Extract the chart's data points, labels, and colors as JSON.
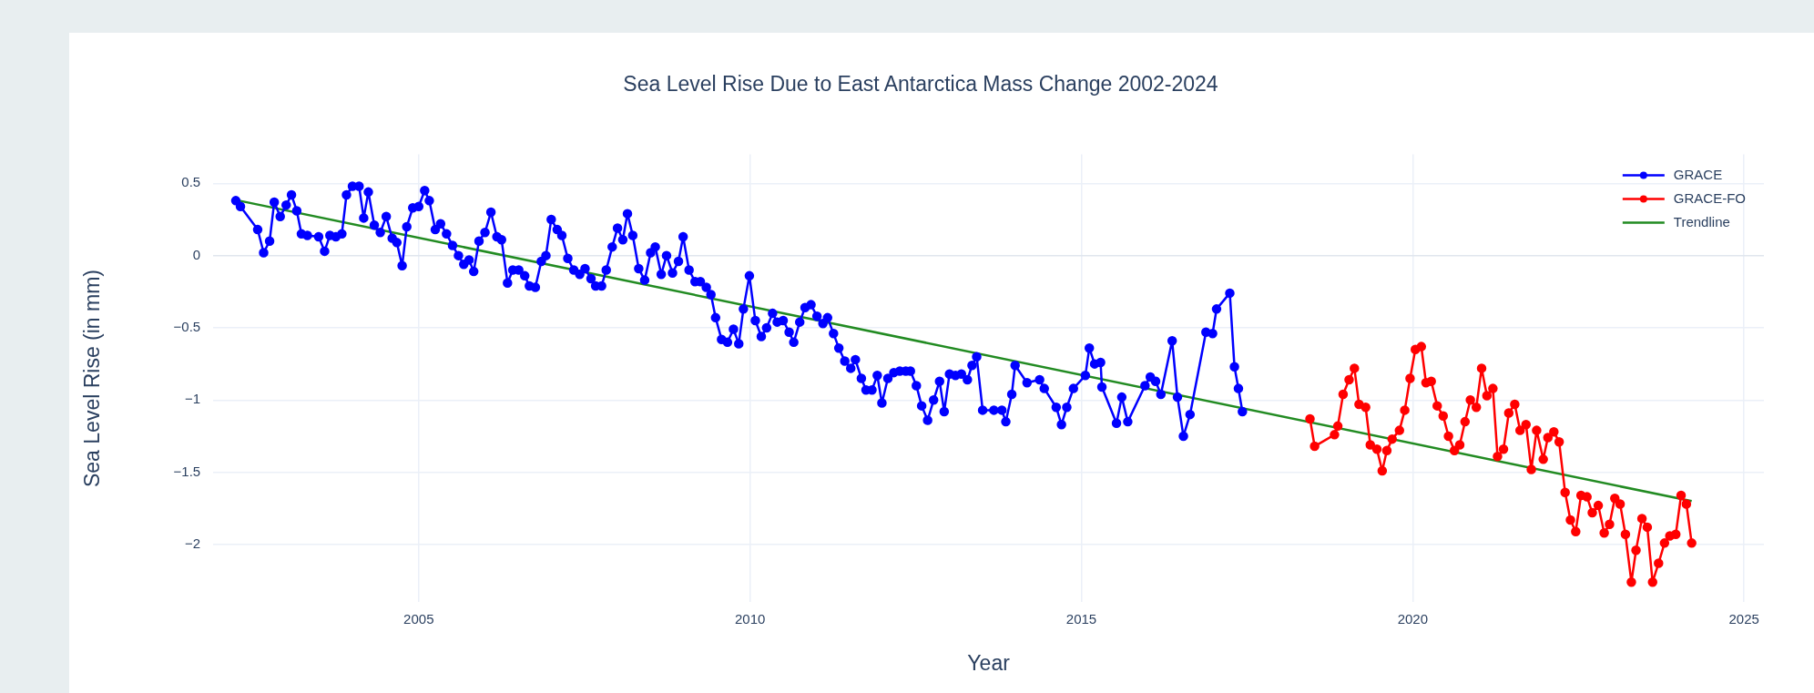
{
  "chart_data": {
    "type": "line",
    "title": "Sea Level Rise Due to East Antarctica Mass Change 2002-2024",
    "xlabel": "Year",
    "ylabel": "Sea Level Rise (in mm)",
    "xlim": [
      2001.9,
      2025.3
    ],
    "xticks": [
      2005,
      2010,
      2015,
      2020,
      2025
    ],
    "ylim": [
      -2.4,
      0.7
    ],
    "yticks": [
      {
        "value": 0.5,
        "label": "0.5"
      },
      {
        "value": 0,
        "label": "0"
      },
      {
        "value": -0.5,
        "label": "−0.5"
      },
      {
        "value": -1,
        "label": "−1"
      },
      {
        "value": -1.5,
        "label": "−1.5"
      },
      {
        "value": -2,
        "label": "−2"
      }
    ],
    "grid": true,
    "legend": "top right",
    "marker": "circle",
    "line_style": "solid",
    "series": [
      {
        "name": "GRACE",
        "color": "#0000ff",
        "x": [
          2002.24,
          2002.31,
          2002.57,
          2002.66,
          2002.75,
          2002.82,
          2002.91,
          2003.0,
          2003.08,
          2003.16,
          2003.23,
          2003.32,
          2003.49,
          2003.58,
          2003.66,
          2003.75,
          2003.84,
          2003.91,
          2004.0,
          2004.1,
          2004.17,
          2004.24,
          2004.33,
          2004.42,
          2004.51,
          2004.6,
          2004.67,
          2004.75,
          2004.82,
          2004.91,
          2005.0,
          2005.09,
          2005.16,
          2005.25,
          2005.33,
          2005.42,
          2005.51,
          2005.6,
          2005.68,
          2005.76,
          2005.83,
          2005.91,
          2006.0,
          2006.09,
          2006.18,
          2006.25,
          2006.34,
          2006.42,
          2006.51,
          2006.6,
          2006.67,
          2006.76,
          2006.85,
          2006.92,
          2007.0,
          2007.09,
          2007.16,
          2007.25,
          2007.34,
          2007.43,
          2007.51,
          2007.6,
          2007.67,
          2007.76,
          2007.83,
          2007.92,
          2008.0,
          2008.08,
          2008.15,
          2008.23,
          2008.32,
          2008.41,
          2008.5,
          2008.57,
          2008.66,
          2008.74,
          2008.83,
          2008.92,
          2008.99,
          2009.08,
          2009.17,
          2009.25,
          2009.34,
          2009.41,
          2009.48,
          2009.57,
          2009.66,
          2009.75,
          2009.83,
          2009.9,
          2009.99,
          2010.08,
          2010.17,
          2010.25,
          2010.34,
          2010.41,
          2010.5,
          2010.59,
          2010.66,
          2010.75,
          2010.83,
          2010.92,
          2011.01,
          2011.1,
          2011.17,
          2011.26,
          2011.34,
          2011.43,
          2011.52,
          2011.59,
          2011.68,
          2011.75,
          2011.84,
          2011.92,
          2011.99,
          2012.08,
          2012.17,
          2012.26,
          2012.35,
          2012.42,
          2012.51,
          2012.59,
          2012.68,
          2012.77,
          2012.86,
          2012.93,
          2013.01,
          2013.1,
          2013.19,
          2013.28,
          2013.35,
          2013.42,
          2013.51,
          2013.68,
          2013.8,
          2013.86,
          2013.95,
          2014.0,
          2014.18,
          2014.37,
          2014.44,
          2014.62,
          2014.7,
          2014.78,
          2014.88,
          2015.06,
          2015.12,
          2015.2,
          2015.29,
          2015.31,
          2015.53,
          2015.61,
          2015.7,
          2015.96,
          2016.04,
          2016.12,
          2016.2,
          2016.37,
          2016.45,
          2016.54,
          2016.64,
          2016.88,
          2016.98,
          2017.04,
          2017.24,
          2017.31,
          2017.37,
          2017.43
        ],
        "values": [
          0.38,
          0.34,
          0.18,
          0.02,
          0.1,
          0.37,
          0.27,
          0.35,
          0.42,
          0.31,
          0.15,
          0.14,
          0.13,
          0.03,
          0.14,
          0.13,
          0.15,
          0.42,
          0.48,
          0.48,
          0.26,
          0.44,
          0.21,
          0.16,
          0.27,
          0.12,
          0.09,
          -0.07,
          0.2,
          0.33,
          0.34,
          0.45,
          0.38,
          0.18,
          0.22,
          0.15,
          0.07,
          0.0,
          -0.06,
          -0.03,
          -0.11,
          0.1,
          0.16,
          0.3,
          0.13,
          0.11,
          -0.19,
          -0.1,
          -0.1,
          -0.14,
          -0.21,
          -0.22,
          -0.04,
          0.0,
          0.25,
          0.18,
          0.14,
          -0.02,
          -0.1,
          -0.13,
          -0.09,
          -0.16,
          -0.21,
          -0.21,
          -0.1,
          0.06,
          0.19,
          0.11,
          0.29,
          0.14,
          -0.09,
          -0.17,
          0.02,
          0.06,
          -0.13,
          0.0,
          -0.12,
          -0.04,
          0.13,
          -0.1,
          -0.18,
          -0.18,
          -0.22,
          -0.27,
          -0.43,
          -0.58,
          -0.6,
          -0.51,
          -0.61,
          -0.37,
          -0.14,
          -0.45,
          -0.56,
          -0.5,
          -0.4,
          -0.46,
          -0.45,
          -0.53,
          -0.6,
          -0.46,
          -0.36,
          -0.34,
          -0.42,
          -0.47,
          -0.43,
          -0.54,
          -0.64,
          -0.73,
          -0.78,
          -0.72,
          -0.85,
          -0.93,
          -0.93,
          -0.83,
          -1.02,
          -0.85,
          -0.81,
          -0.8,
          -0.8,
          -0.8,
          -0.9,
          -1.04,
          -1.14,
          -1.0,
          -0.87,
          -1.08,
          -0.82,
          -0.83,
          -0.82,
          -0.86,
          -0.76,
          -0.7,
          -1.07,
          -1.07,
          -1.07,
          -1.15,
          -0.96,
          -0.76,
          -0.88,
          -0.86,
          -0.92,
          -1.05,
          -1.17,
          -1.05,
          -0.92,
          -0.83,
          -0.64,
          -0.75,
          -0.74,
          -0.91,
          -1.16,
          -0.98,
          -1.15,
          -0.9,
          -0.84,
          -0.87,
          -0.96,
          -0.59,
          -0.98,
          -1.25,
          -1.1,
          -0.53,
          -0.54,
          -0.37,
          -0.26,
          -0.77,
          -0.92,
          -1.08
        ]
      },
      {
        "name": "GRACE-FO",
        "color": "#ff0000",
        "x": [
          2018.45,
          2018.52,
          2018.82,
          2018.87,
          2018.95,
          2019.04,
          2019.12,
          2019.19,
          2019.29,
          2019.36,
          2019.46,
          2019.54,
          2019.61,
          2019.69,
          2019.8,
          2019.88,
          2019.96,
          2020.04,
          2020.13,
          2020.2,
          2020.28,
          2020.37,
          2020.46,
          2020.54,
          2020.63,
          2020.71,
          2020.79,
          2020.87,
          2020.96,
          2021.04,
          2021.12,
          2021.21,
          2021.28,
          2021.37,
          2021.45,
          2021.54,
          2021.62,
          2021.71,
          2021.79,
          2021.87,
          2021.97,
          2022.04,
          2022.13,
          2022.21,
          2022.3,
          2022.38,
          2022.46,
          2022.54,
          2022.63,
          2022.71,
          2022.8,
          2022.89,
          2022.97,
          2023.05,
          2023.13,
          2023.21,
          2023.3,
          2023.37,
          2023.46,
          2023.54,
          2023.62,
          2023.71,
          2023.8,
          2023.88,
          2023.97,
          2024.05,
          2024.13,
          2024.21
        ],
        "values": [
          -1.13,
          -1.32,
          -1.24,
          -1.18,
          -0.96,
          -0.86,
          -0.78,
          -1.03,
          -1.05,
          -1.31,
          -1.34,
          -1.49,
          -1.35,
          -1.27,
          -1.21,
          -1.07,
          -0.85,
          -0.65,
          -0.63,
          -0.88,
          -0.87,
          -1.04,
          -1.11,
          -1.25,
          -1.35,
          -1.31,
          -1.15,
          -1.0,
          -1.05,
          -0.78,
          -0.97,
          -0.92,
          -1.39,
          -1.34,
          -1.09,
          -1.03,
          -1.21,
          -1.17,
          -1.48,
          -1.21,
          -1.41,
          -1.26,
          -1.22,
          -1.29,
          -1.64,
          -1.83,
          -1.91,
          -1.66,
          -1.67,
          -1.78,
          -1.73,
          -1.92,
          -1.86,
          -1.68,
          -1.72,
          -1.93,
          -2.26,
          -2.04,
          -1.82,
          -1.88,
          -2.26,
          -2.13,
          -1.99,
          -1.94,
          -1.93,
          -1.66,
          -1.72,
          -1.99
        ]
      },
      {
        "name": "Trendline",
        "color": "#228b22",
        "marker": "none",
        "x": [
          2002.29,
          2024.21
        ],
        "values": [
          0.38,
          -1.7
        ]
      }
    ]
  }
}
